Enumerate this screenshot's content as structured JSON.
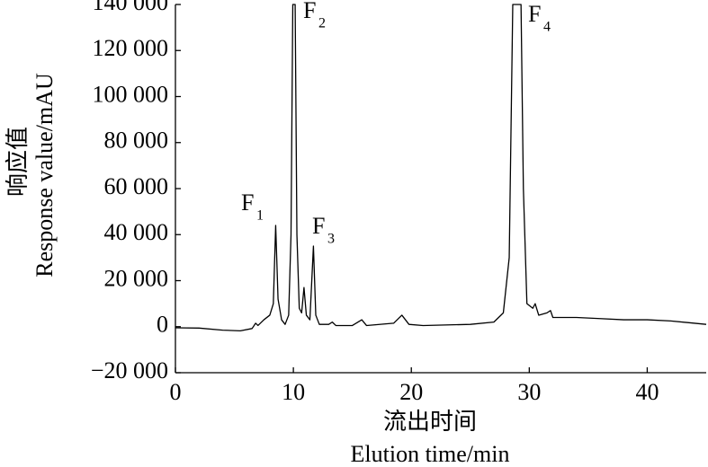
{
  "chart_data": {
    "type": "line",
    "xlabel": [
      "流出时间",
      "Elution time/min"
    ],
    "ylabel": [
      "响应值",
      "Response value/mAU"
    ],
    "annotations": [
      {
        "label": "F",
        "subscript": "1"
      },
      {
        "label": "F",
        "subscript": "2"
      },
      {
        "label": "F",
        "subscript": "3"
      },
      {
        "label": "F",
        "subscript": "4"
      }
    ],
    "x": [
      0,
      2,
      4,
      5.5,
      6.5,
      6.8,
      7.0,
      7.5,
      8.0,
      8.3,
      8.5,
      8.7,
      9.0,
      9.3,
      9.6,
      9.8,
      9.95,
      10.15,
      10.3,
      10.5,
      10.7,
      10.9,
      11.1,
      11.4,
      11.7,
      11.9,
      12.2,
      13,
      13.3,
      13.6,
      15,
      15.8,
      16.2,
      18.5,
      19.2,
      19.8,
      21,
      25,
      27,
      27.8,
      28.3,
      28.6,
      29.3,
      29.5,
      29.8,
      30.3,
      30.5,
      30.8,
      31.5,
      31.8,
      32,
      34,
      36,
      38,
      40,
      42,
      45
    ],
    "series": [
      {
        "color": "#000000",
        "values": [
          -500,
          -600,
          -1500,
          -1800,
          -800,
          1500,
          500,
          3000,
          5000,
          10000,
          44000,
          12000,
          3000,
          1000,
          5000,
          40000,
          140000,
          140000,
          40000,
          8000,
          6000,
          17000,
          5000,
          3000,
          35000,
          5000,
          1000,
          1000,
          2000,
          500,
          500,
          3000,
          500,
          1500,
          5000,
          1000,
          500,
          1000,
          2000,
          6000,
          30000,
          140000,
          140000,
          60000,
          10000,
          8000,
          10000,
          5000,
          6000,
          7000,
          4000,
          4000,
          3500,
          3000,
          3000,
          2500,
          1000
        ]
      }
    ],
    "xlim": [
      0,
      45
    ],
    "xticks": [
      0,
      10,
      20,
      30,
      40
    ],
    "ylim": [
      -20000,
      140000
    ],
    "yticks": [
      {
        "value": -20000,
        "label": "−20 000"
      },
      0,
      {
        "value": 20000,
        "label": "20 000"
      },
      {
        "value": 40000,
        "label": "40 000"
      },
      {
        "value": 60000,
        "label": "60 000"
      },
      {
        "value": 80000,
        "label": "80 000"
      },
      {
        "value": 100000,
        "label": "100 000"
      },
      {
        "value": 120000,
        "label": "120 000"
      },
      {
        "value": 140000,
        "label": "140 000"
      }
    ],
    "grid": false
  }
}
